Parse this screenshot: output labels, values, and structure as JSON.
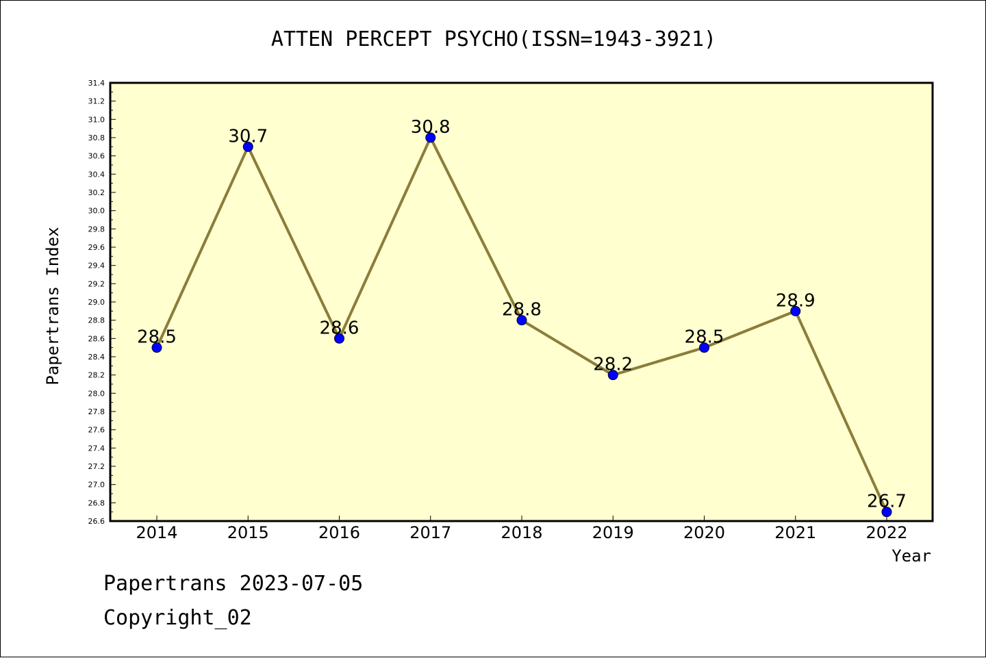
{
  "chart_data": {
    "type": "line",
    "title": "ATTEN PERCEPT PSYCHO(ISSN=1943-3921)",
    "xlabel": "Year",
    "ylabel": "Papertrans Index",
    "categories": [
      "2014",
      "2015",
      "2016",
      "2017",
      "2018",
      "2019",
      "2020",
      "2021",
      "2022"
    ],
    "series": [
      {
        "values": [
          28.5,
          30.7,
          28.6,
          30.8,
          28.8,
          28.2,
          28.5,
          28.9,
          26.7
        ],
        "data_labels": [
          "28.5",
          "30.7",
          "28.6",
          "30.8",
          "28.8",
          "28.2",
          "28.5",
          "28.9",
          "26.7"
        ]
      }
    ],
    "ylim": [
      26.6,
      31.4
    ],
    "yticks": [
      "26.6",
      "26.8",
      "27.0",
      "27.2",
      "27.4",
      "27.6",
      "27.8",
      "28.0",
      "28.2",
      "28.4",
      "28.6",
      "28.8",
      "29.0",
      "29.2",
      "29.4",
      "29.6",
      "29.8",
      "30.0",
      "30.2",
      "30.4",
      "30.6",
      "30.8",
      "31.0",
      "31.2",
      "31.4"
    ],
    "grid": false,
    "legend": "none",
    "colors": {
      "plot_background": "#ffffd0",
      "line": "#8b7d3a",
      "marker": "#0000ff"
    }
  },
  "footer": {
    "line1": "Papertrans 2023-07-05",
    "line2": "Copyright_02"
  }
}
